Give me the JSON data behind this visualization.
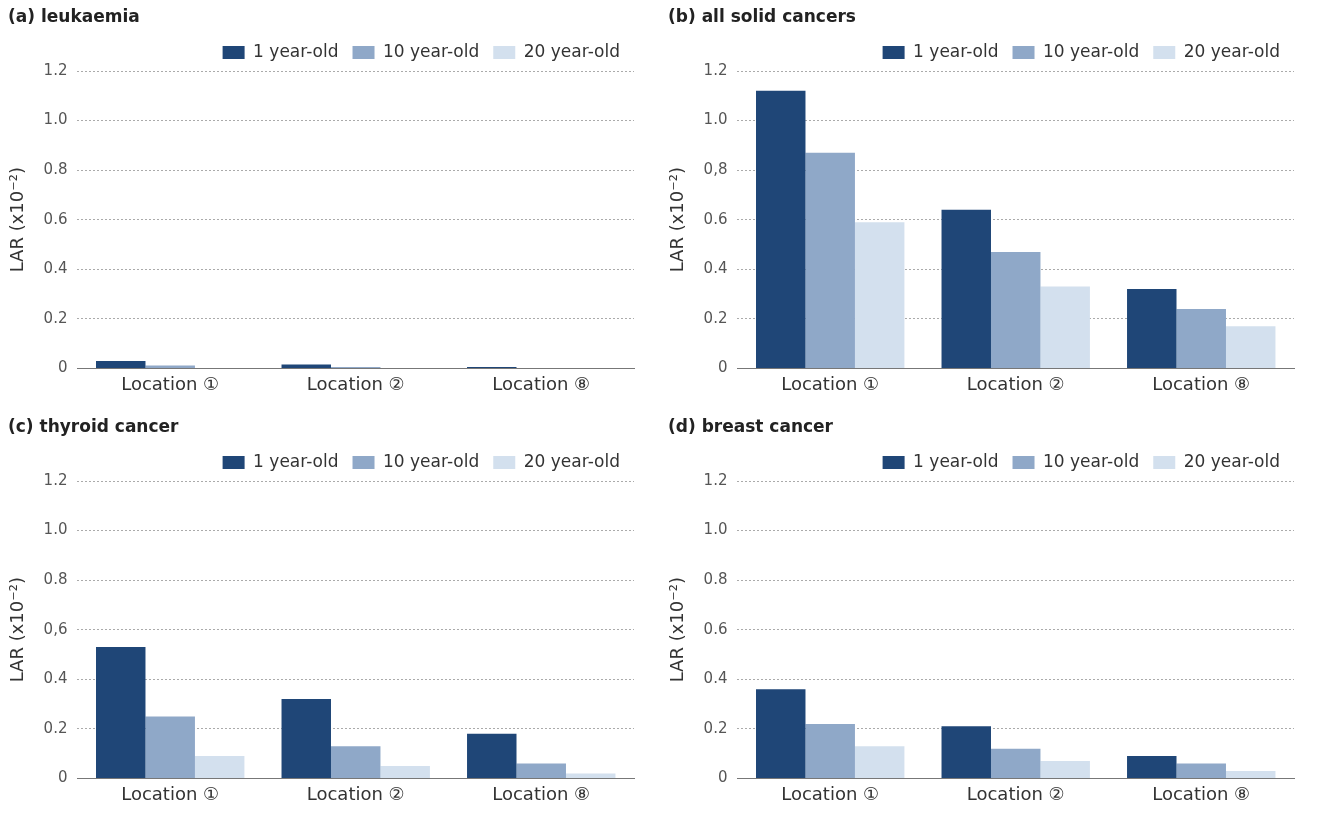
{
  "chart_data": [
    {
      "type": "bar",
      "title": "(a) leukaemia",
      "ylabel": "LAR (x10⁻²)",
      "categories": [
        "Location ①",
        "Location ②",
        "Location ⑧"
      ],
      "series": [
        {
          "name": "1 year-old",
          "color": "#1f4677",
          "values": [
            0.03,
            0.016,
            0.006
          ]
        },
        {
          "name": "10 year-old",
          "color": "#8fa8c8",
          "values": [
            0.012,
            0.006,
            0.002
          ]
        },
        {
          "name": "20 year-old",
          "color": "#d3e0ee",
          "values": [
            null,
            0.002,
            null
          ]
        }
      ],
      "ylim": [
        0,
        1.2
      ],
      "yticks": [
        0,
        0.2,
        0.4,
        0.6,
        0.8,
        {
          "value": 1.0,
          "label": "1.0"
        },
        1.2
      ],
      "grid": "y",
      "legend": "top right"
    },
    {
      "type": "bar",
      "title": "(b) all solid cancers",
      "ylabel": "LAR (x10⁻²)",
      "categories": [
        "Location ①",
        "Location ②",
        "Location ⑧"
      ],
      "series": [
        {
          "name": "1 year-old",
          "color": "#1f4677",
          "values": [
            1.12,
            0.64,
            0.32
          ]
        },
        {
          "name": "10 year-old",
          "color": "#8fa8c8",
          "values": [
            0.87,
            0.47,
            0.24
          ]
        },
        {
          "name": "20 year-old",
          "color": "#d3e0ee",
          "values": [
            0.59,
            0.33,
            0.17
          ]
        }
      ],
      "ylim": [
        0,
        1.2
      ],
      "yticks": [
        0,
        0.2,
        0.4,
        0.6,
        {
          "value": 0.8,
          "label": "0,8"
        },
        {
          "value": 1.0,
          "label": "1.0"
        },
        1.2
      ],
      "grid": "y",
      "legend": "top right"
    },
    {
      "type": "bar",
      "title": "(c) thyroid cancer",
      "ylabel": "LAR (x10⁻²)",
      "categories": [
        "Location ①",
        "Location ②",
        "Location ⑧"
      ],
      "series": [
        {
          "name": "1 year-old",
          "color": "#1f4677",
          "values": [
            0.53,
            0.32,
            0.18
          ]
        },
        {
          "name": "10 year-old",
          "color": "#8fa8c8",
          "values": [
            0.25,
            0.13,
            0.06
          ]
        },
        {
          "name": "20 year-old",
          "color": "#d3e0ee",
          "values": [
            0.09,
            0.05,
            0.02
          ]
        }
      ],
      "ylim": [
        0,
        1.2
      ],
      "yticks": [
        0,
        0.2,
        0.4,
        {
          "value": 0.6,
          "label": "0,6"
        },
        0.8,
        {
          "value": 1.0,
          "label": "1.0"
        },
        1.2
      ],
      "grid": "y",
      "legend": "top right"
    },
    {
      "type": "bar",
      "title": "(d) breast cancer",
      "ylabel": "LAR (x10⁻²)",
      "categories": [
        "Location ①",
        "Location ②",
        "Location ⑧"
      ],
      "series": [
        {
          "name": "1 year-old",
          "color": "#1f4677",
          "values": [
            0.36,
            0.21,
            0.09
          ]
        },
        {
          "name": "10 year-old",
          "color": "#8fa8c8",
          "values": [
            0.22,
            0.12,
            0.06
          ]
        },
        {
          "name": "20 year-old",
          "color": "#d3e0ee",
          "values": [
            0.13,
            0.07,
            0.03
          ]
        }
      ],
      "ylim": [
        0,
        1.2
      ],
      "yticks": [
        0,
        0.2,
        0.4,
        0.6,
        0.8,
        {
          "value": 1.0,
          "label": "1.0"
        },
        1.2
      ],
      "grid": "y",
      "legend": "top right"
    }
  ]
}
